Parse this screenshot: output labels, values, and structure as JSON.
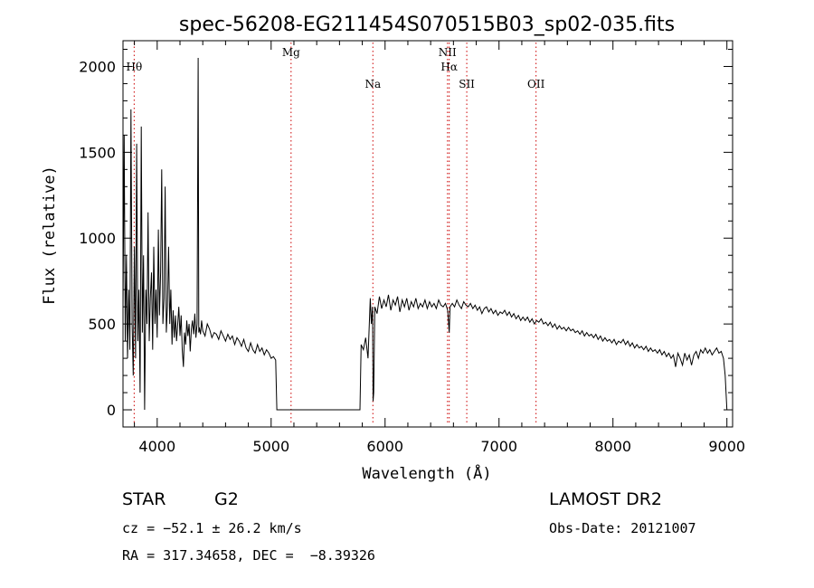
{
  "chart_data": {
    "type": "line",
    "title": "spec-56208-EG211454S070515B03_sp02-035.fits",
    "xlabel": "Wavelength (Å)",
    "ylabel": "Flux (relative)",
    "xlim": [
      3700,
      9050
    ],
    "ylim": [
      -100,
      2150
    ],
    "x_ticks": [
      4000,
      5000,
      6000,
      7000,
      8000,
      9000
    ],
    "y_ticks": [
      0,
      500,
      1000,
      1500,
      2000
    ],
    "series": [
      {
        "values": [
          [
            3700,
            600
          ],
          [
            3710,
            1600
          ],
          [
            3720,
            400
          ],
          [
            3730,
            900
          ],
          [
            3740,
            300
          ],
          [
            3750,
            700
          ],
          [
            3760,
            350
          ],
          [
            3770,
            1750
          ],
          [
            3780,
            500
          ],
          [
            3790,
            200
          ],
          [
            3800,
            950
          ],
          [
            3810,
            300
          ],
          [
            3820,
            1550
          ],
          [
            3830,
            400
          ],
          [
            3840,
            700
          ],
          [
            3850,
            100
          ],
          [
            3860,
            1650
          ],
          [
            3870,
            450
          ],
          [
            3880,
            900
          ],
          [
            3890,
            0
          ],
          [
            3900,
            700
          ],
          [
            3910,
            500
          ],
          [
            3920,
            1150
          ],
          [
            3930,
            400
          ],
          [
            3940,
            650
          ],
          [
            3950,
            800
          ],
          [
            3960,
            350
          ],
          [
            3970,
            950
          ],
          [
            3980,
            500
          ],
          [
            3990,
            700
          ],
          [
            4000,
            420
          ],
          [
            4010,
            1050
          ],
          [
            4020,
            550
          ],
          [
            4030,
            800
          ],
          [
            4040,
            1400
          ],
          [
            4050,
            500
          ],
          [
            4060,
            650
          ],
          [
            4070,
            1300
          ],
          [
            4080,
            450
          ],
          [
            4090,
            600
          ],
          [
            4100,
            950
          ],
          [
            4110,
            500
          ],
          [
            4120,
            700
          ],
          [
            4130,
            380
          ],
          [
            4140,
            580
          ],
          [
            4150,
            420
          ],
          [
            4160,
            550
          ],
          [
            4170,
            400
          ],
          [
            4180,
            500
          ],
          [
            4190,
            600
          ],
          [
            4200,
            430
          ],
          [
            4210,
            550
          ],
          [
            4220,
            350
          ],
          [
            4230,
            250
          ],
          [
            4240,
            450
          ],
          [
            4250,
            380
          ],
          [
            4260,
            520
          ],
          [
            4270,
            430
          ],
          [
            4280,
            500
          ],
          [
            4290,
            340
          ],
          [
            4300,
            470
          ],
          [
            4310,
            520
          ],
          [
            4320,
            440
          ],
          [
            4330,
            560
          ],
          [
            4340,
            420
          ],
          [
            4350,
            500
          ],
          [
            4360,
            2050
          ],
          [
            4365,
            450
          ],
          [
            4370,
            480
          ],
          [
            4380,
            440
          ],
          [
            4390,
            520
          ],
          [
            4400,
            460
          ],
          [
            4420,
            430
          ],
          [
            4440,
            500
          ],
          [
            4460,
            470
          ],
          [
            4480,
            420
          ],
          [
            4500,
            450
          ],
          [
            4520,
            440
          ],
          [
            4540,
            410
          ],
          [
            4560,
            460
          ],
          [
            4580,
            430
          ],
          [
            4600,
            400
          ],
          [
            4620,
            440
          ],
          [
            4640,
            410
          ],
          [
            4660,
            430
          ],
          [
            4680,
            380
          ],
          [
            4700,
            420
          ],
          [
            4720,
            400
          ],
          [
            4740,
            370
          ],
          [
            4760,
            410
          ],
          [
            4780,
            360
          ],
          [
            4800,
            340
          ],
          [
            4820,
            390
          ],
          [
            4840,
            350
          ],
          [
            4860,
            330
          ],
          [
            4880,
            380
          ],
          [
            4900,
            340
          ],
          [
            4920,
            360
          ],
          [
            4940,
            320
          ],
          [
            4960,
            350
          ],
          [
            4980,
            330
          ],
          [
            5000,
            300
          ],
          [
            5020,
            310
          ],
          [
            5040,
            290
          ],
          [
            5050,
            0
          ],
          [
            5100,
            0
          ],
          [
            5200,
            0
          ],
          [
            5300,
            0
          ],
          [
            5400,
            0
          ],
          [
            5500,
            0
          ],
          [
            5600,
            0
          ],
          [
            5700,
            0
          ],
          [
            5780,
            0
          ],
          [
            5790,
            380
          ],
          [
            5810,
            350
          ],
          [
            5830,
            420
          ],
          [
            5850,
            300
          ],
          [
            5870,
            650
          ],
          [
            5880,
            500
          ],
          [
            5890,
            600
          ],
          [
            5895,
            50
          ],
          [
            5900,
            100
          ],
          [
            5910,
            600
          ],
          [
            5930,
            560
          ],
          [
            5950,
            660
          ],
          [
            5970,
            590
          ],
          [
            5990,
            640
          ],
          [
            6010,
            600
          ],
          [
            6030,
            670
          ],
          [
            6050,
            580
          ],
          [
            6070,
            640
          ],
          [
            6090,
            610
          ],
          [
            6110,
            660
          ],
          [
            6130,
            570
          ],
          [
            6150,
            640
          ],
          [
            6170,
            600
          ],
          [
            6190,
            650
          ],
          [
            6210,
            580
          ],
          [
            6230,
            630
          ],
          [
            6250,
            600
          ],
          [
            6270,
            650
          ],
          [
            6290,
            590
          ],
          [
            6310,
            620
          ],
          [
            6330,
            600
          ],
          [
            6350,
            640
          ],
          [
            6370,
            590
          ],
          [
            6390,
            630
          ],
          [
            6410,
            600
          ],
          [
            6430,
            620
          ],
          [
            6450,
            590
          ],
          [
            6470,
            640
          ],
          [
            6490,
            610
          ],
          [
            6510,
            600
          ],
          [
            6530,
            620
          ],
          [
            6550,
            580
          ],
          [
            6563,
            450
          ],
          [
            6570,
            600
          ],
          [
            6590,
            620
          ],
          [
            6610,
            600
          ],
          [
            6630,
            640
          ],
          [
            6650,
            610
          ],
          [
            6670,
            590
          ],
          [
            6690,
            630
          ],
          [
            6710,
            610
          ],
          [
            6730,
            600
          ],
          [
            6750,
            620
          ],
          [
            6770,
            590
          ],
          [
            6790,
            610
          ],
          [
            6810,
            580
          ],
          [
            6830,
            600
          ],
          [
            6850,
            560
          ],
          [
            6870,
            590
          ],
          [
            6890,
            600
          ],
          [
            6910,
            570
          ],
          [
            6930,
            590
          ],
          [
            6950,
            560
          ],
          [
            6970,
            580
          ],
          [
            6990,
            550
          ],
          [
            7010,
            570
          ],
          [
            7030,
            560
          ],
          [
            7050,
            580
          ],
          [
            7070,
            550
          ],
          [
            7090,
            570
          ],
          [
            7110,
            540
          ],
          [
            7130,
            560
          ],
          [
            7150,
            530
          ],
          [
            7170,
            550
          ],
          [
            7190,
            520
          ],
          [
            7210,
            540
          ],
          [
            7230,
            520
          ],
          [
            7250,
            540
          ],
          [
            7270,
            510
          ],
          [
            7290,
            530
          ],
          [
            7310,
            500
          ],
          [
            7330,
            520
          ],
          [
            7350,
            510
          ],
          [
            7370,
            530
          ],
          [
            7390,
            500
          ],
          [
            7410,
            510
          ],
          [
            7430,
            490
          ],
          [
            7450,
            510
          ],
          [
            7470,
            480
          ],
          [
            7490,
            500
          ],
          [
            7510,
            470
          ],
          [
            7530,
            490
          ],
          [
            7550,
            470
          ],
          [
            7570,
            480
          ],
          [
            7590,
            460
          ],
          [
            7610,
            480
          ],
          [
            7630,
            460
          ],
          [
            7650,
            470
          ],
          [
            7670,
            450
          ],
          [
            7690,
            460
          ],
          [
            7710,
            440
          ],
          [
            7730,
            460
          ],
          [
            7750,
            430
          ],
          [
            7770,
            450
          ],
          [
            7790,
            430
          ],
          [
            7810,
            440
          ],
          [
            7830,
            420
          ],
          [
            7850,
            440
          ],
          [
            7870,
            410
          ],
          [
            7890,
            430
          ],
          [
            7910,
            400
          ],
          [
            7930,
            420
          ],
          [
            7950,
            400
          ],
          [
            7970,
            410
          ],
          [
            7990,
            390
          ],
          [
            8010,
            410
          ],
          [
            8030,
            380
          ],
          [
            8050,
            400
          ],
          [
            8070,
            390
          ],
          [
            8090,
            410
          ],
          [
            8110,
            380
          ],
          [
            8130,
            400
          ],
          [
            8150,
            370
          ],
          [
            8170,
            390
          ],
          [
            8190,
            360
          ],
          [
            8210,
            380
          ],
          [
            8230,
            360
          ],
          [
            8250,
            370
          ],
          [
            8270,
            350
          ],
          [
            8290,
            370
          ],
          [
            8310,
            340
          ],
          [
            8330,
            360
          ],
          [
            8350,
            340
          ],
          [
            8370,
            350
          ],
          [
            8390,
            330
          ],
          [
            8410,
            350
          ],
          [
            8430,
            320
          ],
          [
            8450,
            340
          ],
          [
            8470,
            310
          ],
          [
            8490,
            330
          ],
          [
            8510,
            300
          ],
          [
            8530,
            320
          ],
          [
            8550,
            250
          ],
          [
            8570,
            330
          ],
          [
            8590,
            300
          ],
          [
            8610,
            260
          ],
          [
            8630,
            330
          ],
          [
            8650,
            290
          ],
          [
            8670,
            320
          ],
          [
            8690,
            260
          ],
          [
            8710,
            320
          ],
          [
            8730,
            340
          ],
          [
            8750,
            300
          ],
          [
            8770,
            350
          ],
          [
            8790,
            330
          ],
          [
            8810,
            360
          ],
          [
            8830,
            330
          ],
          [
            8850,
            350
          ],
          [
            8870,
            320
          ],
          [
            8890,
            340
          ],
          [
            8910,
            360
          ],
          [
            8930,
            330
          ],
          [
            8950,
            340
          ],
          [
            8970,
            300
          ],
          [
            8985,
            200
          ],
          [
            9000,
            0
          ]
        ]
      }
    ],
    "line_markers": [
      {
        "label": "Hθ",
        "x": 3798,
        "label_row": "high"
      },
      {
        "label": "Mg",
        "x": 5175,
        "label_row": "top"
      },
      {
        "label": "Na",
        "x": 5893,
        "label_row": "low"
      },
      {
        "label": "NII",
        "x": 6548,
        "label_row": "top"
      },
      {
        "label": "Hα",
        "x": 6563,
        "label_row": "high"
      },
      {
        "label": "SII",
        "x": 6717,
        "label_row": "low"
      },
      {
        "label": "OII",
        "x": 7325,
        "label_row": "low"
      }
    ],
    "marker_color": "#cc0000",
    "line_color": "#000000",
    "grid": false,
    "legend": "none"
  },
  "footer": {
    "object_class": "STAR",
    "subclass": "G2",
    "redshift_text": "cz = −52.1 ± 26.2 km/s",
    "coords_text": "RA = 317.34658, DEC =  −8.39326",
    "survey": "LAMOST DR2",
    "obs_date": "Obs-Date: 20121007"
  }
}
